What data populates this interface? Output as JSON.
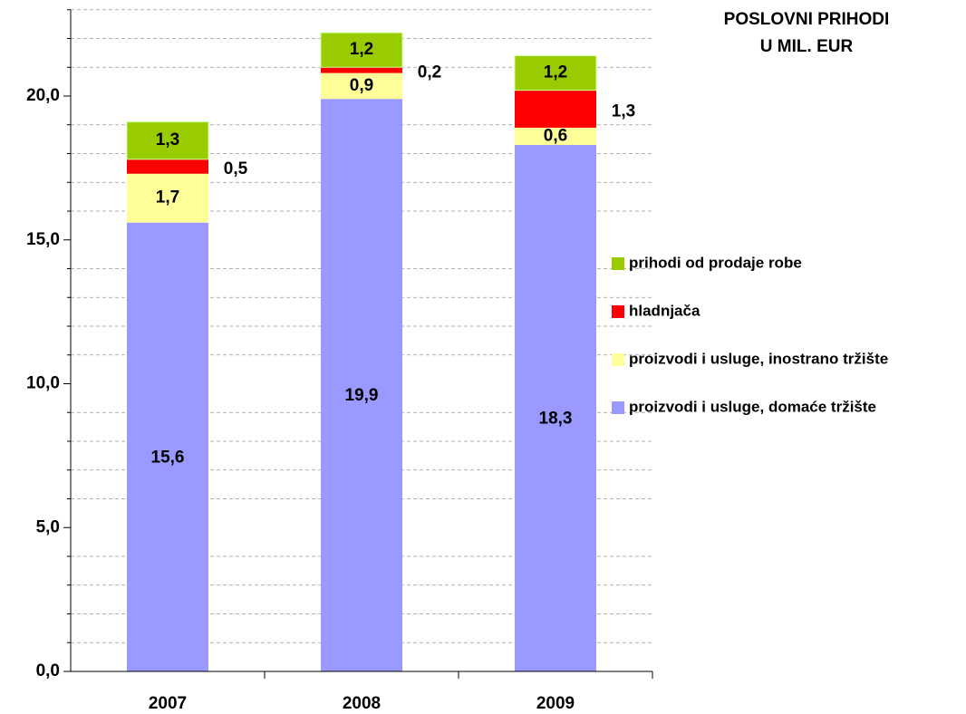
{
  "chart_data": {
    "type": "stacked_bar",
    "title": [
      "POSLOVNI PRIHODI",
      "U MIL. EUR"
    ],
    "categories": [
      "2007",
      "2008",
      "2009"
    ],
    "series": [
      {
        "name": "proizvodi i usluge, domaće tržište",
        "color": "#9999ff",
        "values": [
          15.6,
          19.9,
          18.3
        ],
        "value_labels": [
          "15,6",
          "19,9",
          "18,3"
        ]
      },
      {
        "name": "proizvodi i usluge, inostrano tržište",
        "color": "#ffff99",
        "values": [
          1.7,
          0.9,
          0.6
        ],
        "value_labels": [
          "1,7",
          "0,9",
          "0,6"
        ]
      },
      {
        "name": "hladnjača",
        "color": "#ff0000",
        "values": [
          0.5,
          0.2,
          1.3
        ],
        "value_labels": [
          "0,5",
          "0,2",
          "1,3"
        ]
      },
      {
        "name": "prihodi od prodaje robe",
        "color": "#99cc00",
        "values": [
          1.3,
          1.2,
          1.2
        ],
        "value_labels": [
          "1,3",
          "1,2",
          "1,2"
        ]
      }
    ],
    "ylim": [
      0,
      23
    ],
    "yticks": [
      {
        "value": 0,
        "label": "0,0"
      },
      {
        "value": 5,
        "label": "5,0"
      },
      {
        "value": 10,
        "label": "10,0"
      },
      {
        "value": 15,
        "label": "15,0"
      },
      {
        "value": 20,
        "label": "20,0"
      }
    ],
    "minor_yticks": [
      1,
      2,
      3,
      4,
      6,
      7,
      8,
      9,
      11,
      12,
      13,
      14,
      16,
      17,
      18,
      19,
      21,
      22,
      23
    ],
    "grid": true
  }
}
